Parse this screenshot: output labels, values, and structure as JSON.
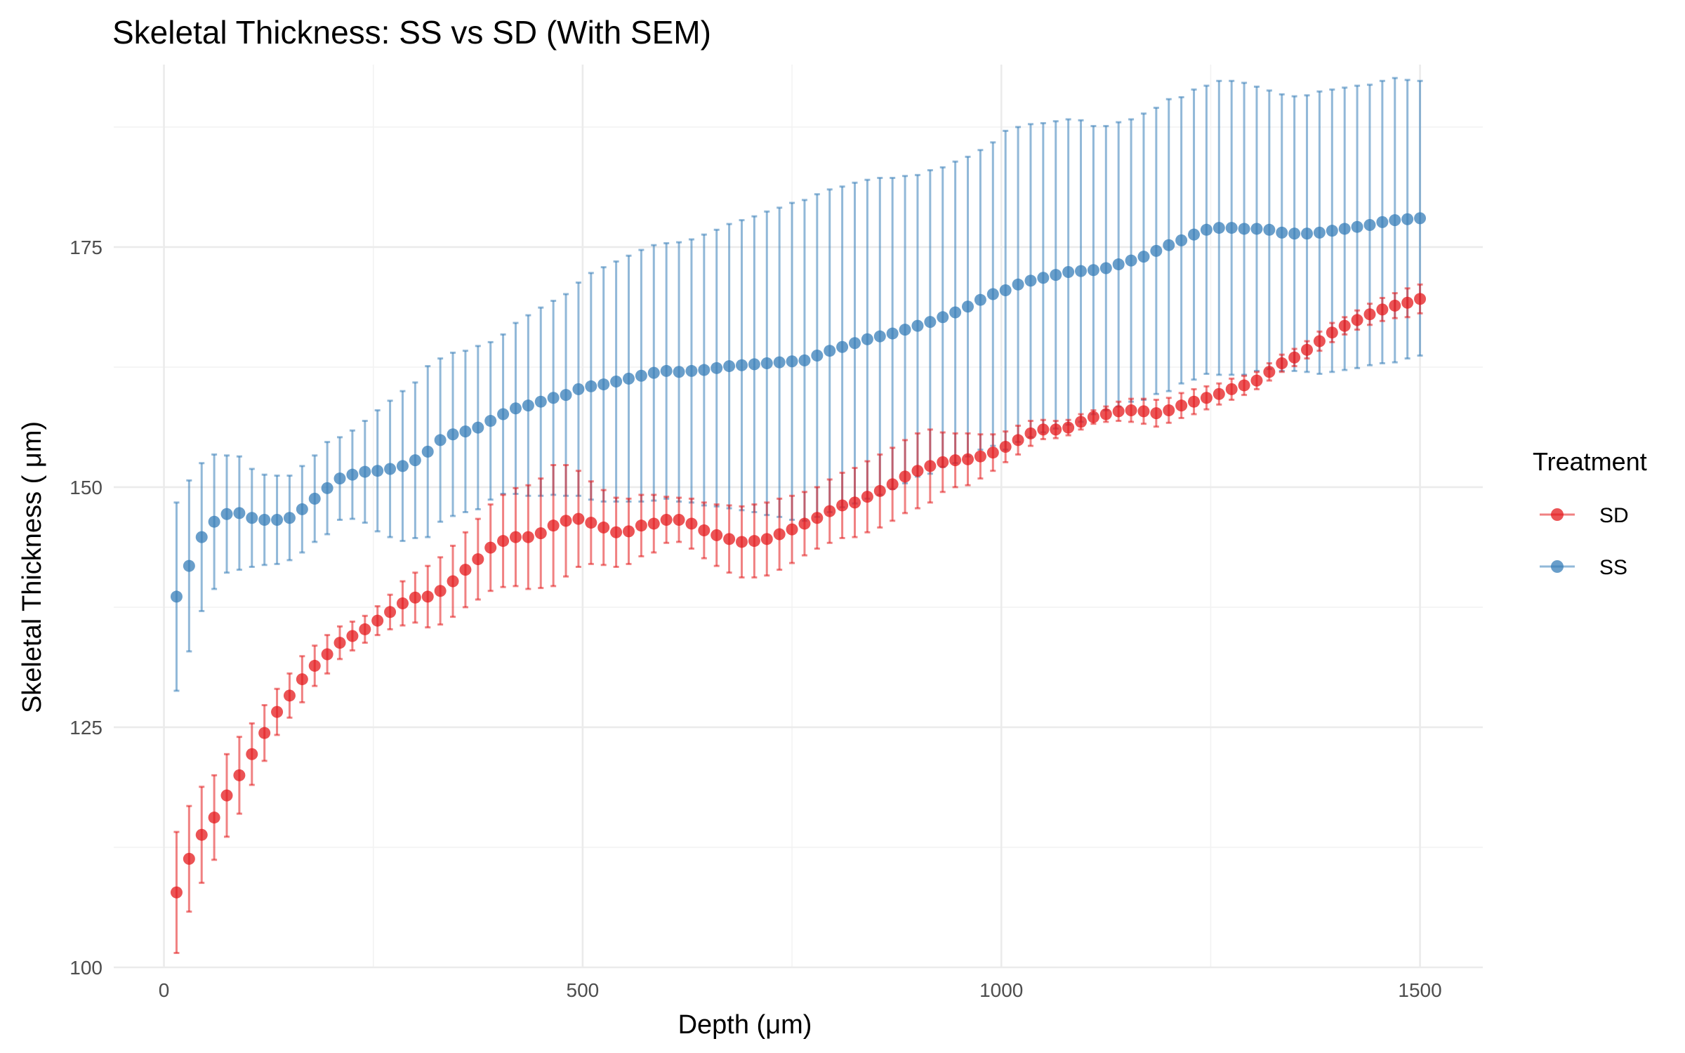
{
  "chart_data": {
    "type": "scatter",
    "title": "Skeletal Thickness: SS vs SD (With SEM)",
    "xlabel": "Depth (μm)",
    "ylabel": "Skeletal Thickness ( μm)",
    "xlim": [
      -60,
      1575
    ],
    "ylim": [
      100.0,
      194
    ],
    "x_ticks": [
      0,
      500,
      1000,
      1500
    ],
    "y_ticks": [
      100,
      125,
      150,
      175
    ],
    "grid": true,
    "legend": {
      "title": "Treatment",
      "position": "right"
    },
    "series": [
      {
        "name": "SD",
        "color": "#e41a1c",
        "points": [
          {
            "x": 15,
            "y": 107.8,
            "sem": 6.3
          },
          {
            "x": 30,
            "y": 111.3,
            "sem": 5.5
          },
          {
            "x": 45,
            "y": 113.8,
            "sem": 5.0
          },
          {
            "x": 60,
            "y": 115.6,
            "sem": 4.4
          },
          {
            "x": 75,
            "y": 117.9,
            "sem": 4.3
          },
          {
            "x": 90,
            "y": 120.0,
            "sem": 4.0
          },
          {
            "x": 105,
            "y": 122.2,
            "sem": 3.2
          },
          {
            "x": 120,
            "y": 124.4,
            "sem": 2.9
          },
          {
            "x": 135,
            "y": 126.6,
            "sem": 2.4
          },
          {
            "x": 150,
            "y": 128.3,
            "sem": 2.3
          },
          {
            "x": 165,
            "y": 130.0,
            "sem": 2.4
          },
          {
            "x": 180,
            "y": 131.4,
            "sem": 2.1
          },
          {
            "x": 195,
            "y": 132.6,
            "sem": 2.0
          },
          {
            "x": 210,
            "y": 133.8,
            "sem": 1.7
          },
          {
            "x": 225,
            "y": 134.5,
            "sem": 1.5
          },
          {
            "x": 240,
            "y": 135.2,
            "sem": 1.4
          },
          {
            "x": 255,
            "y": 136.1,
            "sem": 1.5
          },
          {
            "x": 270,
            "y": 137.0,
            "sem": 1.8
          },
          {
            "x": 285,
            "y": 137.9,
            "sem": 2.3
          },
          {
            "x": 300,
            "y": 138.5,
            "sem": 2.6
          },
          {
            "x": 315,
            "y": 138.6,
            "sem": 3.2
          },
          {
            "x": 330,
            "y": 139.2,
            "sem": 3.5
          },
          {
            "x": 345,
            "y": 140.2,
            "sem": 3.7
          },
          {
            "x": 360,
            "y": 141.4,
            "sem": 3.9
          },
          {
            "x": 375,
            "y": 142.5,
            "sem": 4.2
          },
          {
            "x": 390,
            "y": 143.7,
            "sem": 4.5
          },
          {
            "x": 405,
            "y": 144.4,
            "sem": 4.8
          },
          {
            "x": 420,
            "y": 144.8,
            "sem": 5.1
          },
          {
            "x": 435,
            "y": 144.8,
            "sem": 5.4
          },
          {
            "x": 450,
            "y": 145.2,
            "sem": 5.7
          },
          {
            "x": 465,
            "y": 146.0,
            "sem": 6.3
          },
          {
            "x": 480,
            "y": 146.5,
            "sem": 5.8
          },
          {
            "x": 495,
            "y": 146.7,
            "sem": 5.0
          },
          {
            "x": 510,
            "y": 146.3,
            "sem": 4.3
          },
          {
            "x": 525,
            "y": 145.8,
            "sem": 3.9
          },
          {
            "x": 540,
            "y": 145.3,
            "sem": 3.6
          },
          {
            "x": 555,
            "y": 145.4,
            "sem": 3.4
          },
          {
            "x": 570,
            "y": 146.0,
            "sem": 3.2
          },
          {
            "x": 585,
            "y": 146.2,
            "sem": 3.0
          },
          {
            "x": 600,
            "y": 146.6,
            "sem": 2.4
          },
          {
            "x": 615,
            "y": 146.6,
            "sem": 2.3
          },
          {
            "x": 630,
            "y": 146.2,
            "sem": 2.6
          },
          {
            "x": 645,
            "y": 145.5,
            "sem": 2.9
          },
          {
            "x": 660,
            "y": 145.0,
            "sem": 3.2
          },
          {
            "x": 675,
            "y": 144.6,
            "sem": 3.5
          },
          {
            "x": 690,
            "y": 144.3,
            "sem": 3.7
          },
          {
            "x": 705,
            "y": 144.4,
            "sem": 3.8
          },
          {
            "x": 720,
            "y": 144.6,
            "sem": 3.8
          },
          {
            "x": 735,
            "y": 145.1,
            "sem": 3.7
          },
          {
            "x": 750,
            "y": 145.6,
            "sem": 3.5
          },
          {
            "x": 765,
            "y": 146.2,
            "sem": 3.3
          },
          {
            "x": 780,
            "y": 146.8,
            "sem": 3.2
          },
          {
            "x": 795,
            "y": 147.5,
            "sem": 3.3
          },
          {
            "x": 810,
            "y": 148.1,
            "sem": 3.4
          },
          {
            "x": 825,
            "y": 148.4,
            "sem": 3.6
          },
          {
            "x": 840,
            "y": 149.0,
            "sem": 3.7
          },
          {
            "x": 855,
            "y": 149.6,
            "sem": 3.8
          },
          {
            "x": 870,
            "y": 150.3,
            "sem": 3.8
          },
          {
            "x": 885,
            "y": 151.1,
            "sem": 3.8
          },
          {
            "x": 900,
            "y": 151.7,
            "sem": 3.9
          },
          {
            "x": 915,
            "y": 152.2,
            "sem": 3.8
          },
          {
            "x": 930,
            "y": 152.6,
            "sem": 3.1
          },
          {
            "x": 945,
            "y": 152.8,
            "sem": 2.8
          },
          {
            "x": 960,
            "y": 152.9,
            "sem": 2.7
          },
          {
            "x": 975,
            "y": 153.2,
            "sem": 2.3
          },
          {
            "x": 990,
            "y": 153.6,
            "sem": 1.9
          },
          {
            "x": 1005,
            "y": 154.2,
            "sem": 1.6
          },
          {
            "x": 1020,
            "y": 154.9,
            "sem": 1.5
          },
          {
            "x": 1035,
            "y": 155.6,
            "sem": 1.3
          },
          {
            "x": 1050,
            "y": 156.0,
            "sem": 1.0
          },
          {
            "x": 1065,
            "y": 156.0,
            "sem": 0.9
          },
          {
            "x": 1080,
            "y": 156.2,
            "sem": 0.8
          },
          {
            "x": 1095,
            "y": 156.8,
            "sem": 0.8
          },
          {
            "x": 1110,
            "y": 157.3,
            "sem": 0.7
          },
          {
            "x": 1125,
            "y": 157.6,
            "sem": 0.8
          },
          {
            "x": 1140,
            "y": 157.9,
            "sem": 1.0
          },
          {
            "x": 1155,
            "y": 158.0,
            "sem": 1.2
          },
          {
            "x": 1170,
            "y": 157.9,
            "sem": 1.3
          },
          {
            "x": 1185,
            "y": 157.7,
            "sem": 1.4
          },
          {
            "x": 1200,
            "y": 158.0,
            "sem": 1.3
          },
          {
            "x": 1215,
            "y": 158.5,
            "sem": 1.3
          },
          {
            "x": 1230,
            "y": 158.9,
            "sem": 1.3
          },
          {
            "x": 1245,
            "y": 159.3,
            "sem": 1.2
          },
          {
            "x": 1260,
            "y": 159.7,
            "sem": 1.1
          },
          {
            "x": 1275,
            "y": 160.2,
            "sem": 1.1
          },
          {
            "x": 1290,
            "y": 160.6,
            "sem": 1.0
          },
          {
            "x": 1305,
            "y": 161.1,
            "sem": 0.9
          },
          {
            "x": 1320,
            "y": 162.0,
            "sem": 0.9
          },
          {
            "x": 1335,
            "y": 162.9,
            "sem": 0.9
          },
          {
            "x": 1350,
            "y": 163.5,
            "sem": 0.9
          },
          {
            "x": 1365,
            "y": 164.3,
            "sem": 0.9
          },
          {
            "x": 1380,
            "y": 165.2,
            "sem": 1.0
          },
          {
            "x": 1395,
            "y": 166.1,
            "sem": 1.0
          },
          {
            "x": 1410,
            "y": 166.8,
            "sem": 0.9
          },
          {
            "x": 1425,
            "y": 167.4,
            "sem": 1.0
          },
          {
            "x": 1440,
            "y": 168.0,
            "sem": 1.1
          },
          {
            "x": 1455,
            "y": 168.5,
            "sem": 1.2
          },
          {
            "x": 1470,
            "y": 168.9,
            "sem": 1.3
          },
          {
            "x": 1485,
            "y": 169.2,
            "sem": 1.5
          },
          {
            "x": 1500,
            "y": 169.6,
            "sem": 1.5
          }
        ]
      },
      {
        "name": "SS",
        "color": "#377eb8",
        "points": [
          {
            "x": 15,
            "y": 138.6,
            "sem": 9.8
          },
          {
            "x": 30,
            "y": 141.8,
            "sem": 8.9
          },
          {
            "x": 45,
            "y": 144.8,
            "sem": 7.7
          },
          {
            "x": 60,
            "y": 146.4,
            "sem": 7.0
          },
          {
            "x": 75,
            "y": 147.2,
            "sem": 6.1
          },
          {
            "x": 90,
            "y": 147.3,
            "sem": 5.9
          },
          {
            "x": 105,
            "y": 146.8,
            "sem": 5.1
          },
          {
            "x": 120,
            "y": 146.6,
            "sem": 4.7
          },
          {
            "x": 135,
            "y": 146.6,
            "sem": 4.6
          },
          {
            "x": 150,
            "y": 146.8,
            "sem": 4.4
          },
          {
            "x": 165,
            "y": 147.7,
            "sem": 4.5
          },
          {
            "x": 180,
            "y": 148.8,
            "sem": 4.5
          },
          {
            "x": 195,
            "y": 149.9,
            "sem": 4.8
          },
          {
            "x": 210,
            "y": 150.9,
            "sem": 4.3
          },
          {
            "x": 225,
            "y": 151.3,
            "sem": 4.6
          },
          {
            "x": 240,
            "y": 151.6,
            "sem": 5.3
          },
          {
            "x": 255,
            "y": 151.7,
            "sem": 6.3
          },
          {
            "x": 270,
            "y": 151.9,
            "sem": 7.1
          },
          {
            "x": 285,
            "y": 152.2,
            "sem": 7.8
          },
          {
            "x": 300,
            "y": 152.8,
            "sem": 8.1
          },
          {
            "x": 315,
            "y": 153.7,
            "sem": 8.9
          },
          {
            "x": 330,
            "y": 154.9,
            "sem": 8.5
          },
          {
            "x": 345,
            "y": 155.5,
            "sem": 8.5
          },
          {
            "x": 360,
            "y": 155.8,
            "sem": 8.4
          },
          {
            "x": 375,
            "y": 156.2,
            "sem": 8.5
          },
          {
            "x": 390,
            "y": 156.9,
            "sem": 8.2
          },
          {
            "x": 405,
            "y": 157.6,
            "sem": 8.3
          },
          {
            "x": 420,
            "y": 158.2,
            "sem": 8.9
          },
          {
            "x": 435,
            "y": 158.5,
            "sem": 9.4
          },
          {
            "x": 450,
            "y": 158.9,
            "sem": 9.8
          },
          {
            "x": 465,
            "y": 159.3,
            "sem": 10.1
          },
          {
            "x": 480,
            "y": 159.6,
            "sem": 10.5
          },
          {
            "x": 495,
            "y": 160.2,
            "sem": 11.1
          },
          {
            "x": 510,
            "y": 160.5,
            "sem": 11.8
          },
          {
            "x": 525,
            "y": 160.7,
            "sem": 12.2
          },
          {
            "x": 540,
            "y": 161.0,
            "sem": 12.5
          },
          {
            "x": 555,
            "y": 161.3,
            "sem": 12.8
          },
          {
            "x": 570,
            "y": 161.6,
            "sem": 13.1
          },
          {
            "x": 585,
            "y": 161.9,
            "sem": 13.3
          },
          {
            "x": 600,
            "y": 162.1,
            "sem": 13.3
          },
          {
            "x": 615,
            "y": 162.0,
            "sem": 13.5
          },
          {
            "x": 630,
            "y": 162.1,
            "sem": 13.7
          },
          {
            "x": 645,
            "y": 162.2,
            "sem": 14.1
          },
          {
            "x": 660,
            "y": 162.4,
            "sem": 14.4
          },
          {
            "x": 675,
            "y": 162.6,
            "sem": 14.8
          },
          {
            "x": 690,
            "y": 162.7,
            "sem": 15.1
          },
          {
            "x": 705,
            "y": 162.8,
            "sem": 15.4
          },
          {
            "x": 720,
            "y": 162.9,
            "sem": 15.8
          },
          {
            "x": 735,
            "y": 163.0,
            "sem": 16.1
          },
          {
            "x": 750,
            "y": 163.1,
            "sem": 16.5
          },
          {
            "x": 765,
            "y": 163.2,
            "sem": 16.7
          },
          {
            "x": 780,
            "y": 163.7,
            "sem": 16.8
          },
          {
            "x": 795,
            "y": 164.2,
            "sem": 16.8
          },
          {
            "x": 810,
            "y": 164.6,
            "sem": 16.7
          },
          {
            "x": 825,
            "y": 165.0,
            "sem": 16.7
          },
          {
            "x": 840,
            "y": 165.4,
            "sem": 16.6
          },
          {
            "x": 855,
            "y": 165.7,
            "sem": 16.5
          },
          {
            "x": 870,
            "y": 166.0,
            "sem": 16.2
          },
          {
            "x": 885,
            "y": 166.4,
            "sem": 16.0
          },
          {
            "x": 900,
            "y": 166.8,
            "sem": 15.7
          },
          {
            "x": 915,
            "y": 167.2,
            "sem": 15.8
          },
          {
            "x": 930,
            "y": 167.7,
            "sem": 15.6
          },
          {
            "x": 945,
            "y": 168.2,
            "sem": 15.7
          },
          {
            "x": 960,
            "y": 168.8,
            "sem": 15.6
          },
          {
            "x": 975,
            "y": 169.5,
            "sem": 15.6
          },
          {
            "x": 990,
            "y": 170.1,
            "sem": 15.8
          },
          {
            "x": 1005,
            "y": 170.5,
            "sem": 16.6
          },
          {
            "x": 1020,
            "y": 171.1,
            "sem": 16.4
          },
          {
            "x": 1035,
            "y": 171.5,
            "sem": 16.3
          },
          {
            "x": 1050,
            "y": 171.8,
            "sem": 16.1
          },
          {
            "x": 1065,
            "y": 172.1,
            "sem": 16.0
          },
          {
            "x": 1080,
            "y": 172.4,
            "sem": 15.9
          },
          {
            "x": 1095,
            "y": 172.5,
            "sem": 15.7
          },
          {
            "x": 1110,
            "y": 172.6,
            "sem": 15.0
          },
          {
            "x": 1125,
            "y": 172.8,
            "sem": 14.8
          },
          {
            "x": 1140,
            "y": 173.2,
            "sem": 14.8
          },
          {
            "x": 1155,
            "y": 173.6,
            "sem": 14.7
          },
          {
            "x": 1170,
            "y": 174.0,
            "sem": 14.9
          },
          {
            "x": 1185,
            "y": 174.6,
            "sem": 14.9
          },
          {
            "x": 1200,
            "y": 175.2,
            "sem": 15.2
          },
          {
            "x": 1215,
            "y": 175.7,
            "sem": 14.9
          },
          {
            "x": 1230,
            "y": 176.3,
            "sem": 15.1
          },
          {
            "x": 1245,
            "y": 176.8,
            "sem": 15.0
          },
          {
            "x": 1260,
            "y": 177.0,
            "sem": 15.3
          },
          {
            "x": 1275,
            "y": 177.0,
            "sem": 15.3
          },
          {
            "x": 1290,
            "y": 176.9,
            "sem": 15.2
          },
          {
            "x": 1305,
            "y": 176.9,
            "sem": 14.8
          },
          {
            "x": 1320,
            "y": 176.8,
            "sem": 14.5
          },
          {
            "x": 1335,
            "y": 176.5,
            "sem": 14.4
          },
          {
            "x": 1350,
            "y": 176.4,
            "sem": 14.3
          },
          {
            "x": 1365,
            "y": 176.4,
            "sem": 14.4
          },
          {
            "x": 1380,
            "y": 176.5,
            "sem": 14.7
          },
          {
            "x": 1395,
            "y": 176.7,
            "sem": 14.7
          },
          {
            "x": 1410,
            "y": 176.9,
            "sem": 14.7
          },
          {
            "x": 1425,
            "y": 177.1,
            "sem": 14.7
          },
          {
            "x": 1440,
            "y": 177.3,
            "sem": 14.6
          },
          {
            "x": 1455,
            "y": 177.6,
            "sem": 14.7
          },
          {
            "x": 1470,
            "y": 177.8,
            "sem": 14.8
          },
          {
            "x": 1485,
            "y": 177.9,
            "sem": 14.5
          },
          {
            "x": 1500,
            "y": 178.0,
            "sem": 14.3
          }
        ]
      }
    ]
  }
}
